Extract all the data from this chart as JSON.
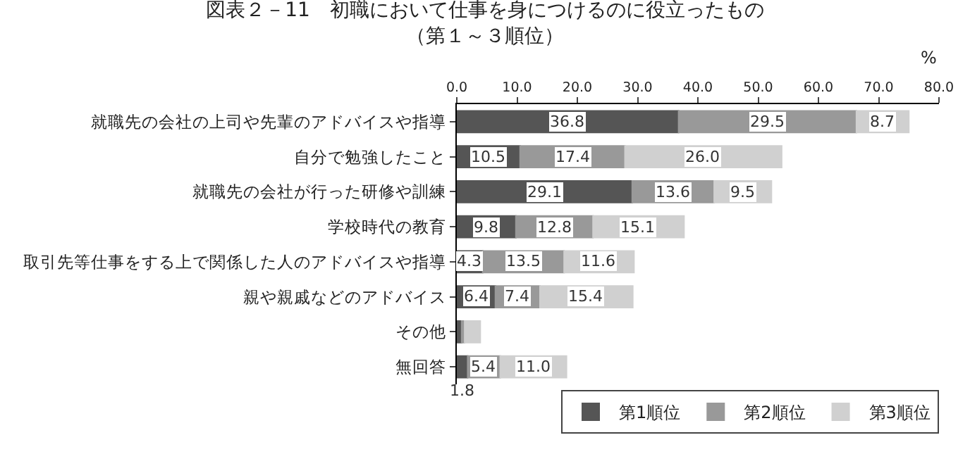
{
  "chart_data": {
    "type": "bar",
    "orientation": "horizontal",
    "stacked": true,
    "title": "図表２－11　初職において仕事を身につけるのに役立ったもの",
    "subtitle": "（第１～３順位）",
    "xlabel": "%",
    "categories": [
      "就職先の会社の上司や先輩のアドバイスや指導",
      "自分で勉強したこと",
      "就職先の会社が行った研修や訓練",
      "学校時代の教育",
      "取引先等仕事をする上で関係した人のアドバイスや指導",
      "親や親戚などのアドバイス",
      "その他",
      "無回答"
    ],
    "series": [
      {
        "name": "第1順位",
        "color": "#555555",
        "values": [
          36.8,
          10.5,
          29.1,
          9.8,
          4.3,
          6.4,
          0.8,
          1.8
        ],
        "value_labels": [
          "36.8",
          "10.5",
          "29.1",
          "9.8",
          "4.3",
          "6.4",
          null,
          "1.8"
        ]
      },
      {
        "name": "第2順位",
        "color": "#999999",
        "values": [
          29.5,
          17.4,
          13.6,
          12.8,
          13.5,
          7.4,
          0.5,
          5.4
        ],
        "value_labels": [
          "29.5",
          "17.4",
          "13.6",
          "12.8",
          "13.5",
          "7.4",
          null,
          "5.4"
        ]
      },
      {
        "name": "第3順位",
        "color": "#d0d0d0",
        "values": [
          8.7,
          26.0,
          9.5,
          15.1,
          11.6,
          15.4,
          2.6,
          11.0
        ],
        "value_labels": [
          "8.7",
          "26.0",
          "9.5",
          "15.1",
          "11.6",
          "15.4",
          null,
          "11.0"
        ]
      }
    ],
    "xlim": [
      0,
      80
    ],
    "xticks": [
      {
        "value": 0,
        "label": "0.0"
      },
      {
        "value": 10,
        "label": "10.0"
      },
      {
        "value": 20,
        "label": "20.0"
      },
      {
        "value": 30,
        "label": "30.0"
      },
      {
        "value": 40,
        "label": "40.0"
      },
      {
        "value": 50,
        "label": "50.0"
      },
      {
        "value": 60,
        "label": "60.0"
      },
      {
        "value": 70,
        "label": "70.0"
      },
      {
        "value": 80,
        "label": "80.0"
      }
    ],
    "legend": "bottom right"
  }
}
